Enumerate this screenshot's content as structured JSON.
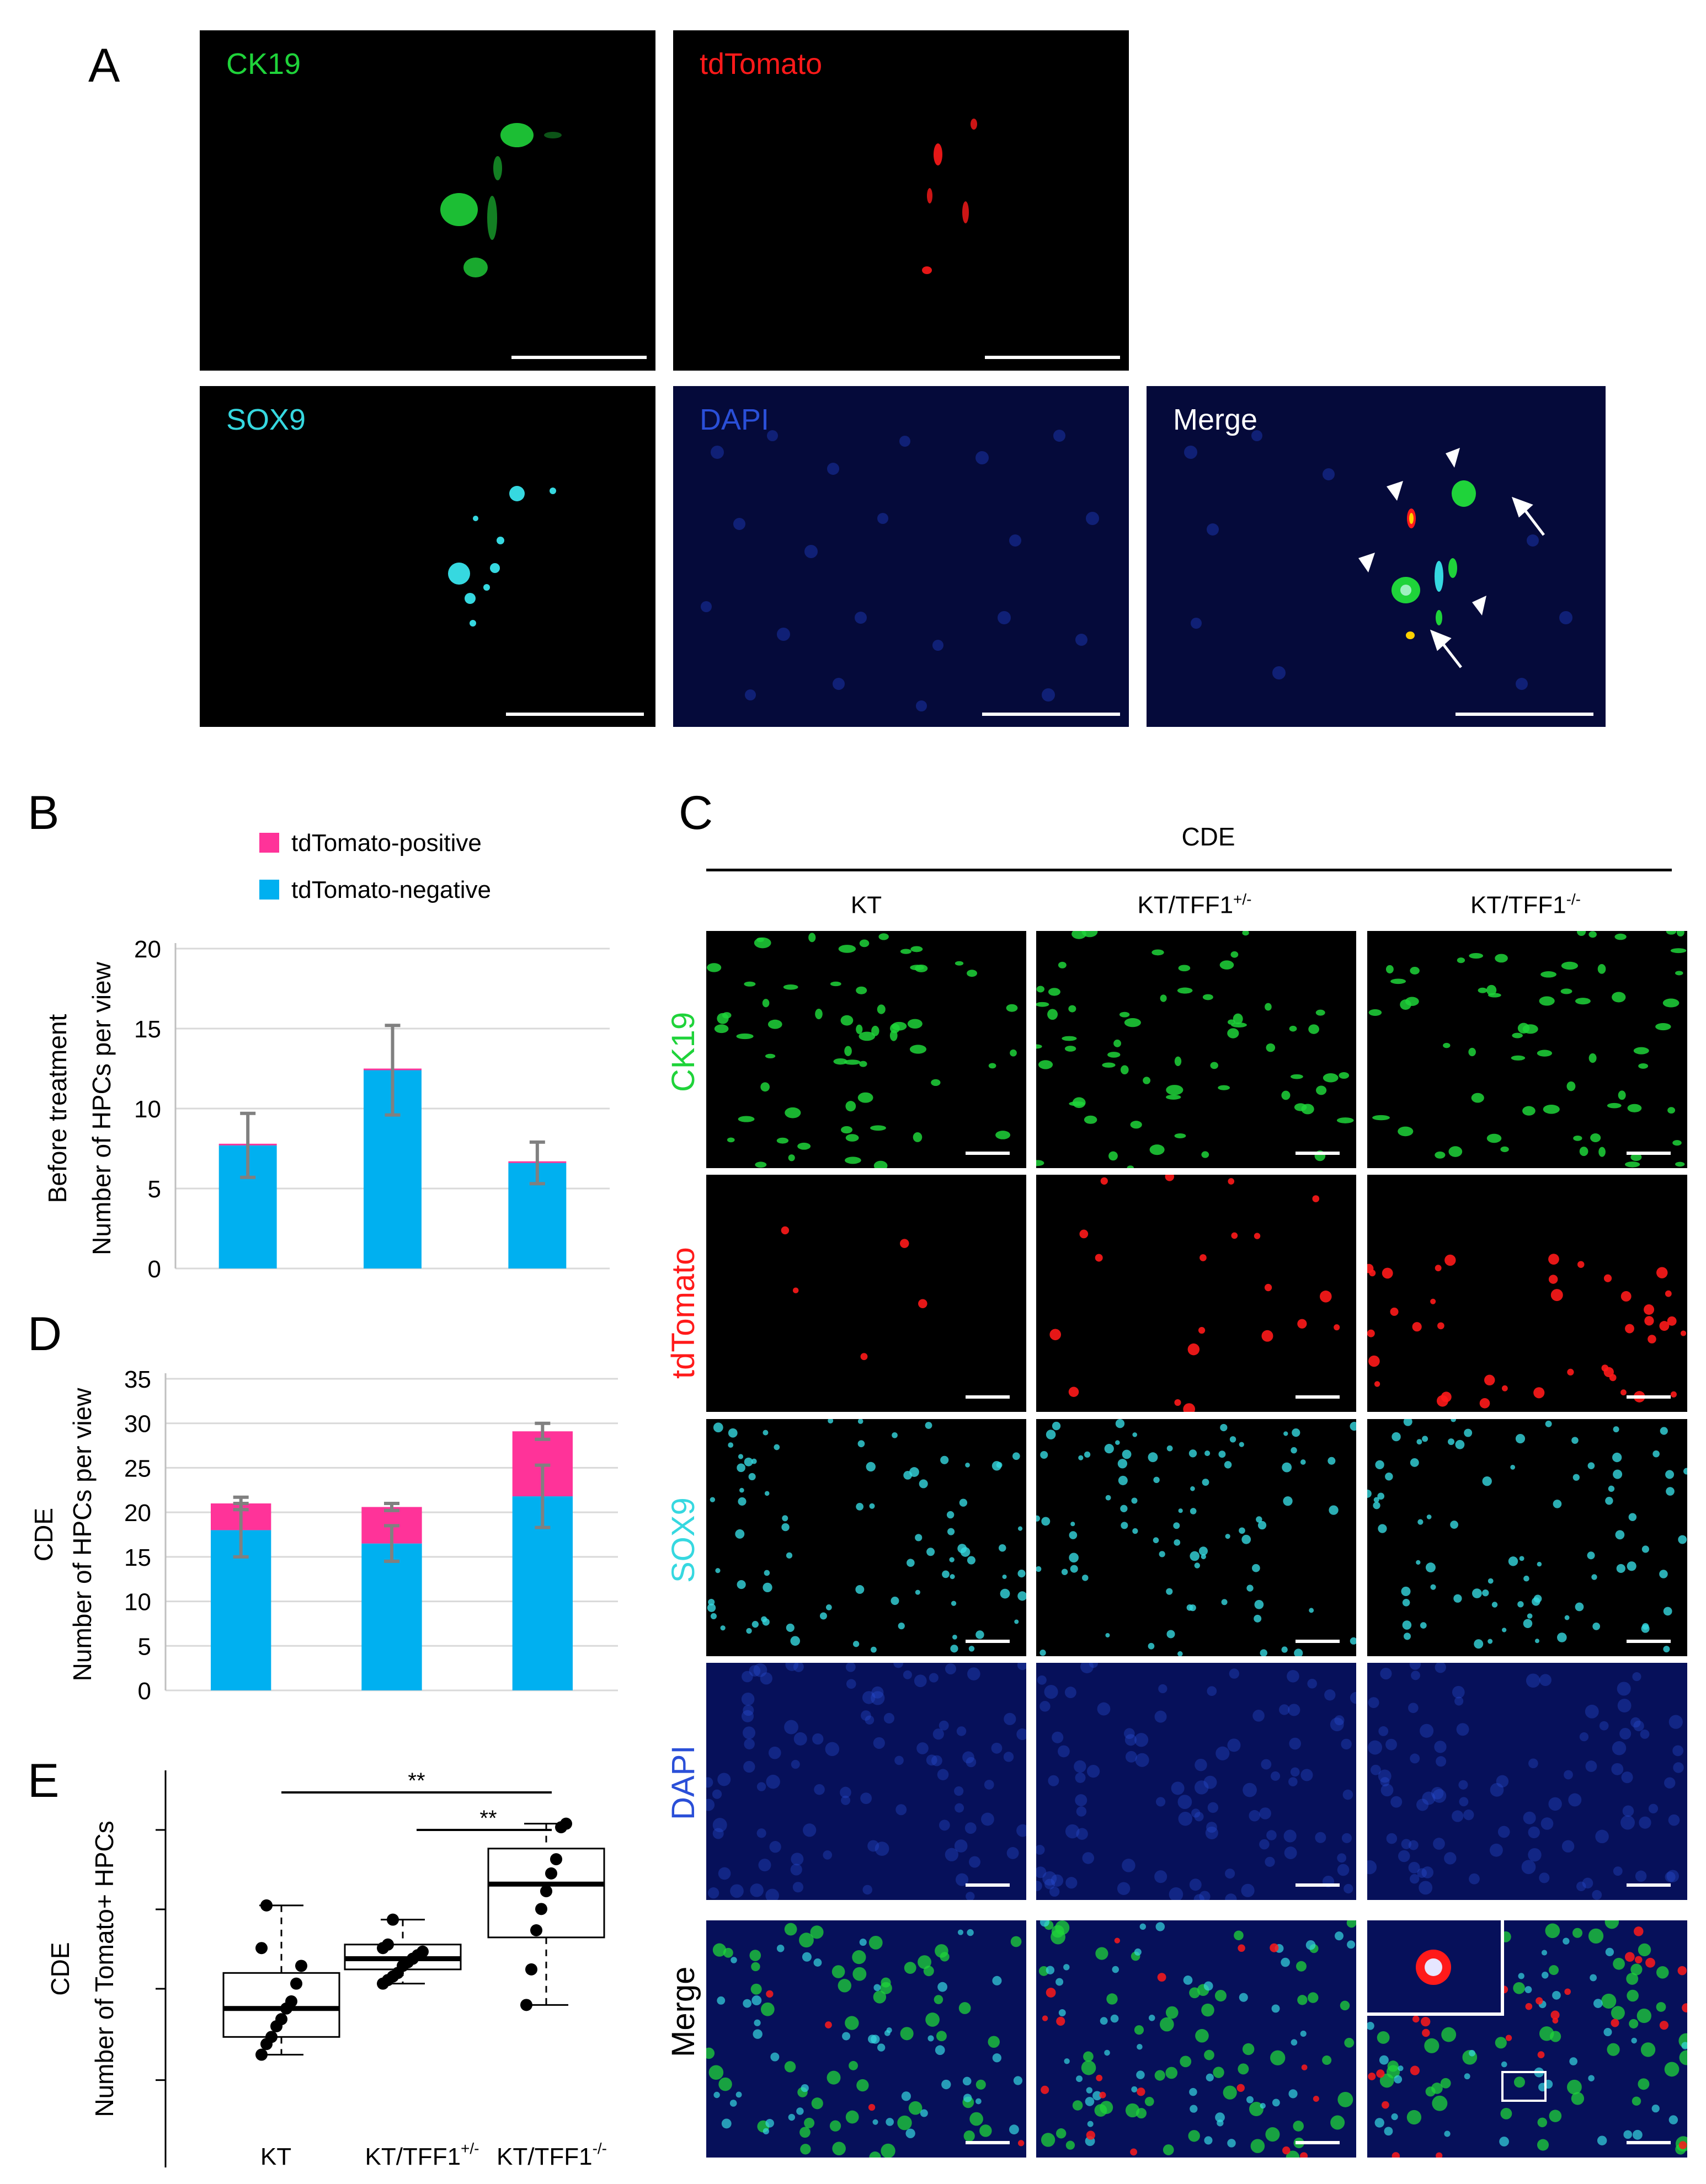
{
  "colors": {
    "ck19": "#1fd33a",
    "tdtomato": "#ff1a1a",
    "sox9": "#36d8e0",
    "dapi": "#2a4fd8",
    "merge_label": "#ffffff",
    "bar_negative": "#00b0f0",
    "bar_positive": "#ff3399",
    "errorbar": "#808080"
  },
  "panel_a": {
    "letter": "A",
    "labels": {
      "ck19": "CK19",
      "tdtomato": "tdTomato",
      "sox9": "SOX9",
      "dapi": "DAPI",
      "merge": "Merge"
    }
  },
  "panel_b": {
    "letter": "B"
  },
  "panel_c": {
    "letter": "C",
    "header": "CDE",
    "columns": [
      "KT",
      "KT/TFF1",
      "KT/TFF1"
    ],
    "column_sups": [
      "",
      "+/-",
      "-/-"
    ],
    "rows": [
      "CK19",
      "tdTomato",
      "SOX9",
      "DAPI",
      "Merge"
    ]
  },
  "panel_d": {
    "letter": "D"
  },
  "panel_e": {
    "letter": "E"
  },
  "chart_data": [
    {
      "id": "B",
      "type": "bar",
      "stacked": true,
      "legend": [
        "tdTomato-positive",
        "tdTomato-negative"
      ],
      "ylabel_outer": "Before treatment",
      "ylabel": "Number of HPCs per view",
      "ylim": [
        0,
        20
      ],
      "yticks": [
        "0",
        "5",
        "10",
        "15",
        "20"
      ],
      "grid": true,
      "series": [
        {
          "name": "tdTomato-negative",
          "values": [
            7.7,
            12.4,
            6.6
          ],
          "err": [
            2.0,
            2.8,
            1.3
          ]
        },
        {
          "name": "tdTomato-positive",
          "values": [
            0.1,
            0.1,
            0.1
          ]
        }
      ]
    },
    {
      "id": "D",
      "type": "bar",
      "stacked": true,
      "ylabel_outer": "CDE",
      "ylabel": "Number of HPCs per view",
      "ylim": [
        0,
        35
      ],
      "yticks": [
        "0",
        "5",
        "10",
        "15",
        "20",
        "25",
        "30",
        "35"
      ],
      "grid": true,
      "series": [
        {
          "name": "tdTomato-negative",
          "values": [
            18.0,
            16.5,
            21.8
          ],
          "err": [
            3.0,
            2.0,
            3.5
          ]
        },
        {
          "name": "tdTomato-positive",
          "values": [
            3.0,
            4.1,
            7.3
          ],
          "err": [
            0.7,
            0.4,
            0.9
          ]
        }
      ]
    },
    {
      "id": "E",
      "type": "box",
      "ylabel_outer": "CDE",
      "ylabel": "Number of Tomato+ HPCs",
      "categories": [
        "KT",
        "KT/TFF1",
        "KT/TFF1"
      ],
      "category_sups": [
        "",
        "+/-",
        "-/-"
      ],
      "significance": [
        "**",
        "**"
      ],
      "groups": [
        {
          "whisker_low": 1.0,
          "q1": 1.5,
          "median": 2.3,
          "q3": 3.3,
          "whisker_high": 5.2,
          "points": [
            1.0,
            1.3,
            1.5,
            1.8,
            2.0,
            2.3,
            2.5,
            3.0,
            3.5,
            4.0,
            5.2
          ]
        },
        {
          "whisker_low": 3.0,
          "q1": 3.4,
          "median": 3.7,
          "q3": 4.1,
          "whisker_high": 4.8,
          "points": [
            3.0,
            3.1,
            3.2,
            3.3,
            3.5,
            3.6,
            3.7,
            3.8,
            3.9,
            4.0,
            4.1,
            4.8
          ]
        },
        {
          "whisker_low": 2.4,
          "q1": 4.3,
          "median": 5.8,
          "q3": 6.8,
          "whisker_high": 7.5,
          "points": [
            2.4,
            3.4,
            4.5,
            5.1,
            5.6,
            6.1,
            6.5,
            7.4,
            7.5
          ]
        }
      ],
      "ylim": [
        0,
        9
      ]
    }
  ]
}
